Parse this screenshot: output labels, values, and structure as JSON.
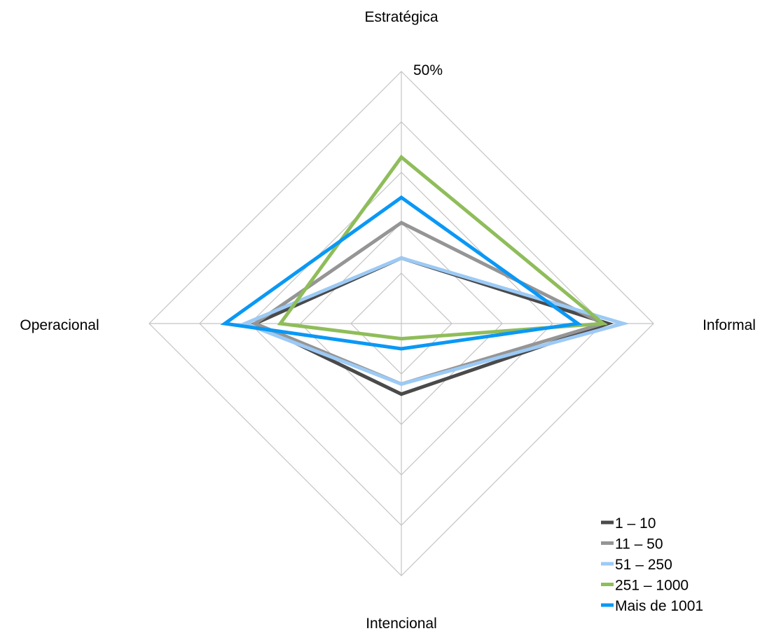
{
  "chart_data": {
    "type": "radar",
    "title": "",
    "axes": [
      "Estratégica",
      "Informal",
      "Intencional",
      "Operacional"
    ],
    "rmax": 50,
    "grid_levels": [
      10,
      20,
      30,
      40,
      50
    ],
    "tick_label": "50%",
    "legend_position": "bottom-right",
    "series": [
      {
        "name": "1 – 10",
        "color": "#4a4a4a",
        "values": [
          13,
          41,
          14,
          29
        ]
      },
      {
        "name": "11 – 50",
        "color": "#959595",
        "values": [
          20,
          40,
          12,
          29
        ]
      },
      {
        "name": "51 – 250",
        "color": "#9ccaf5",
        "values": [
          13,
          44,
          12,
          31
        ]
      },
      {
        "name": "251 – 1000",
        "color": "#8fbd5a",
        "values": [
          33,
          40,
          3,
          24
        ]
      },
      {
        "name": "Mais de 1001",
        "color": "#0a98f5",
        "values": [
          25,
          35,
          5,
          35
        ]
      }
    ]
  }
}
